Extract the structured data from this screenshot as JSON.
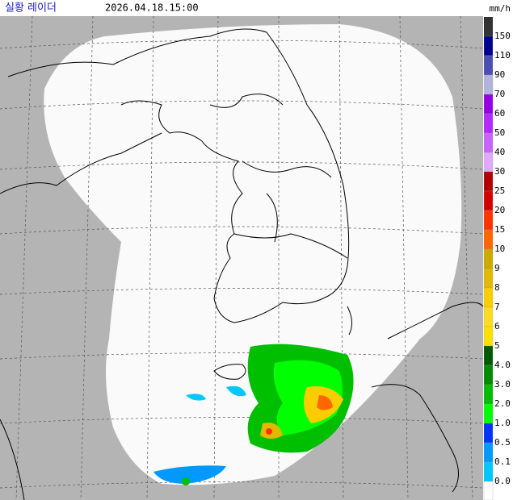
{
  "header": {
    "title": "실황 레이더",
    "datetime": "2026.04.18.15:00",
    "unit": "mm/h"
  },
  "legend": {
    "top_color": "#333333",
    "steps": [
      {
        "label": "150",
        "color": "#000390"
      },
      {
        "label": "110",
        "color": "#4c4eb1"
      },
      {
        "label": "90",
        "color": "#b3b4de"
      },
      {
        "label": "70",
        "color": "#9300e4"
      },
      {
        "label": "60",
        "color": "#b329ff"
      },
      {
        "label": "50",
        "color": "#c963ff"
      },
      {
        "label": "40",
        "color": "#e0a9ff"
      },
      {
        "label": "30",
        "color": "#b40000"
      },
      {
        "label": "25",
        "color": "#d20000"
      },
      {
        "label": "20",
        "color": "#ff3300"
      },
      {
        "label": "15",
        "color": "#ff6600"
      },
      {
        "label": "10",
        "color": "#ccaa00"
      },
      {
        "label": "9",
        "color": "#e0b900"
      },
      {
        "label": "8",
        "color": "#f9cd00"
      },
      {
        "label": "7",
        "color": "#ffdc1f"
      },
      {
        "label": "6",
        "color": "#ffe100"
      },
      {
        "label": "5",
        "color": "#005a00"
      },
      {
        "label": "4.0",
        "color": "#008c00"
      },
      {
        "label": "3.0",
        "color": "#00be00"
      },
      {
        "label": "2.0",
        "color": "#00ff00"
      },
      {
        "label": "1.0",
        "color": "#0033f5"
      },
      {
        "label": "0.5",
        "color": "#0099ff"
      },
      {
        "label": "0.1",
        "color": "#00c8ff"
      },
      {
        "label": "0.0",
        "color": "#ffffff"
      }
    ]
  }
}
